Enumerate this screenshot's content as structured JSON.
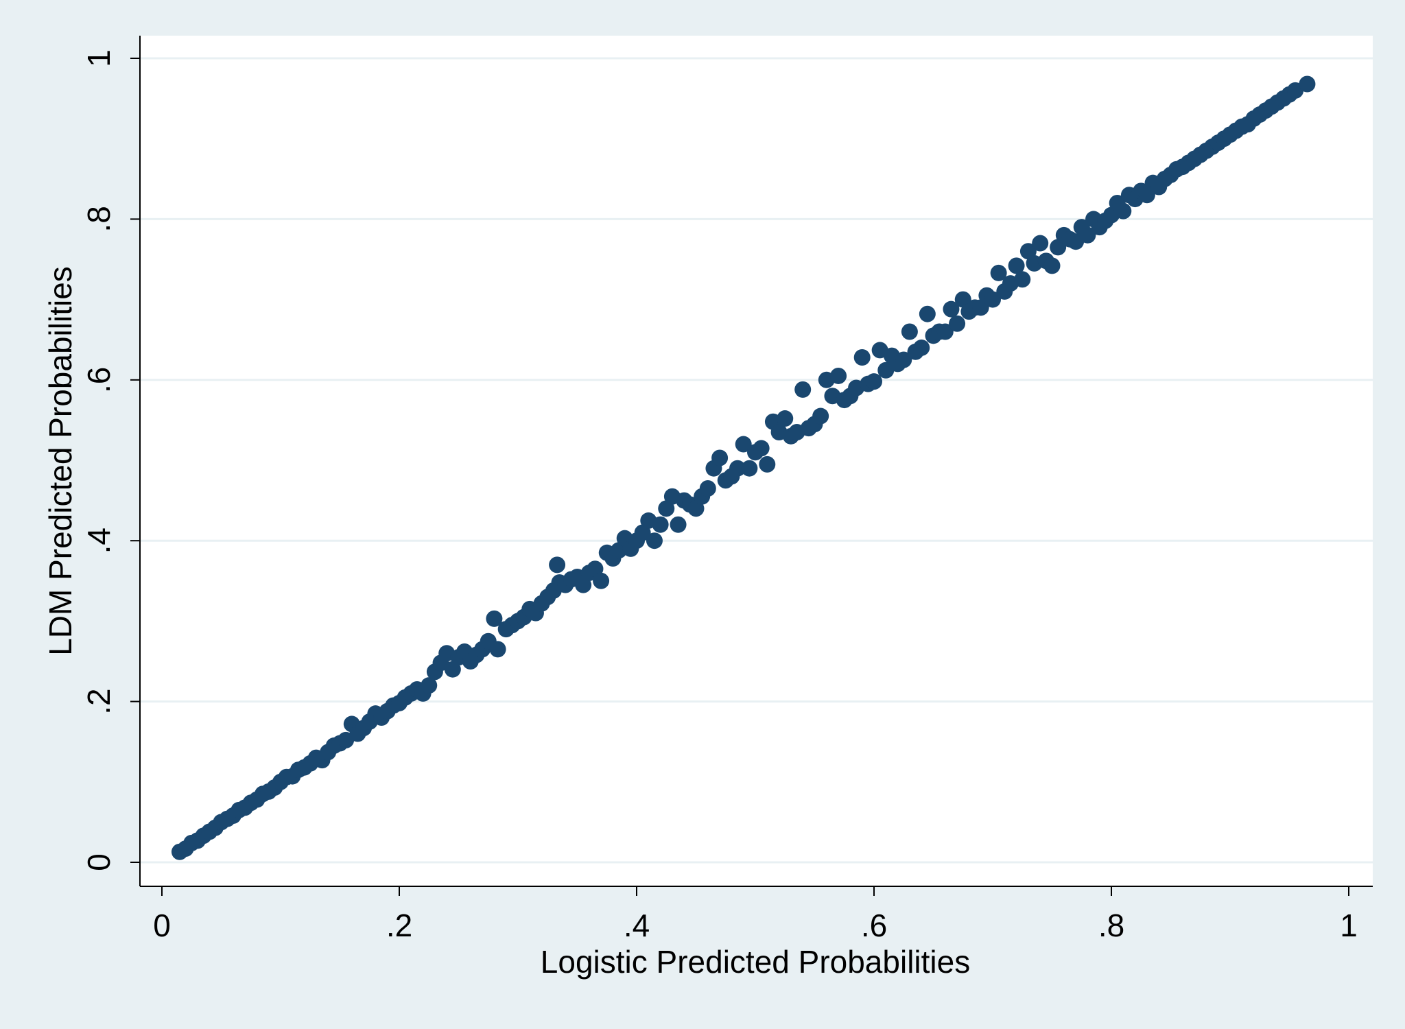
{
  "chart_data": {
    "type": "scatter",
    "title": "",
    "xlabel": "Logistic Predicted Probabilities",
    "ylabel": "LDM Predicted Probabilities",
    "xlim": [
      0,
      1
    ],
    "ylim": [
      0,
      1
    ],
    "x_ticks": [
      {
        "value": 0,
        "label": "0"
      },
      {
        "value": 0.2,
        "label": ".2"
      },
      {
        "value": 0.4,
        "label": ".4"
      },
      {
        "value": 0.6,
        "label": ".6"
      },
      {
        "value": 0.8,
        "label": ".8"
      },
      {
        "value": 1,
        "label": "1"
      }
    ],
    "y_ticks": [
      {
        "value": 0,
        "label": "0"
      },
      {
        "value": 0.2,
        "label": ".2"
      },
      {
        "value": 0.4,
        "label": ".4"
      },
      {
        "value": 0.6,
        "label": ".6"
      },
      {
        "value": 0.8,
        "label": ".8"
      },
      {
        "value": 1,
        "label": "1"
      }
    ],
    "grid": "horizontal",
    "legend": "none",
    "colors": {
      "marker": "#1a476f",
      "background": "#e8f0f3",
      "plot_area": "#ffffff",
      "grid": "#e8f0f3",
      "axis": "#000000"
    },
    "points": [
      [
        0.015,
        0.013
      ],
      [
        0.02,
        0.017
      ],
      [
        0.025,
        0.024
      ],
      [
        0.03,
        0.027
      ],
      [
        0.035,
        0.033
      ],
      [
        0.04,
        0.038
      ],
      [
        0.045,
        0.043
      ],
      [
        0.05,
        0.05
      ],
      [
        0.055,
        0.054
      ],
      [
        0.06,
        0.058
      ],
      [
        0.065,
        0.065
      ],
      [
        0.07,
        0.068
      ],
      [
        0.075,
        0.074
      ],
      [
        0.08,
        0.078
      ],
      [
        0.085,
        0.085
      ],
      [
        0.09,
        0.088
      ],
      [
        0.095,
        0.093
      ],
      [
        0.1,
        0.1
      ],
      [
        0.105,
        0.106
      ],
      [
        0.11,
        0.107
      ],
      [
        0.115,
        0.115
      ],
      [
        0.12,
        0.118
      ],
      [
        0.125,
        0.123
      ],
      [
        0.13,
        0.13
      ],
      [
        0.135,
        0.127
      ],
      [
        0.14,
        0.137
      ],
      [
        0.145,
        0.145
      ],
      [
        0.15,
        0.148
      ],
      [
        0.155,
        0.152
      ],
      [
        0.16,
        0.172
      ],
      [
        0.165,
        0.16
      ],
      [
        0.17,
        0.167
      ],
      [
        0.175,
        0.175
      ],
      [
        0.18,
        0.185
      ],
      [
        0.185,
        0.18
      ],
      [
        0.19,
        0.188
      ],
      [
        0.195,
        0.195
      ],
      [
        0.2,
        0.198
      ],
      [
        0.205,
        0.205
      ],
      [
        0.21,
        0.21
      ],
      [
        0.215,
        0.215
      ],
      [
        0.22,
        0.21
      ],
      [
        0.225,
        0.22
      ],
      [
        0.23,
        0.237
      ],
      [
        0.235,
        0.248
      ],
      [
        0.24,
        0.26
      ],
      [
        0.245,
        0.24
      ],
      [
        0.25,
        0.255
      ],
      [
        0.255,
        0.262
      ],
      [
        0.26,
        0.25
      ],
      [
        0.265,
        0.258
      ],
      [
        0.27,
        0.265
      ],
      [
        0.275,
        0.275
      ],
      [
        0.28,
        0.303
      ],
      [
        0.283,
        0.265
      ],
      [
        0.29,
        0.29
      ],
      [
        0.295,
        0.295
      ],
      [
        0.3,
        0.3
      ],
      [
        0.305,
        0.305
      ],
      [
        0.31,
        0.315
      ],
      [
        0.315,
        0.31
      ],
      [
        0.32,
        0.322
      ],
      [
        0.325,
        0.33
      ],
      [
        0.33,
        0.338
      ],
      [
        0.333,
        0.37
      ],
      [
        0.335,
        0.348
      ],
      [
        0.34,
        0.345
      ],
      [
        0.345,
        0.352
      ],
      [
        0.35,
        0.355
      ],
      [
        0.355,
        0.345
      ],
      [
        0.36,
        0.36
      ],
      [
        0.365,
        0.365
      ],
      [
        0.37,
        0.35
      ],
      [
        0.375,
        0.385
      ],
      [
        0.38,
        0.378
      ],
      [
        0.385,
        0.388
      ],
      [
        0.39,
        0.403
      ],
      [
        0.395,
        0.39
      ],
      [
        0.4,
        0.4
      ],
      [
        0.405,
        0.41
      ],
      [
        0.41,
        0.425
      ],
      [
        0.415,
        0.4
      ],
      [
        0.42,
        0.42
      ],
      [
        0.425,
        0.44
      ],
      [
        0.43,
        0.455
      ],
      [
        0.435,
        0.42
      ],
      [
        0.44,
        0.45
      ],
      [
        0.445,
        0.445
      ],
      [
        0.45,
        0.44
      ],
      [
        0.455,
        0.455
      ],
      [
        0.46,
        0.465
      ],
      [
        0.465,
        0.49
      ],
      [
        0.47,
        0.503
      ],
      [
        0.475,
        0.475
      ],
      [
        0.48,
        0.48
      ],
      [
        0.485,
        0.49
      ],
      [
        0.49,
        0.52
      ],
      [
        0.495,
        0.49
      ],
      [
        0.5,
        0.51
      ],
      [
        0.505,
        0.515
      ],
      [
        0.51,
        0.495
      ],
      [
        0.515,
        0.548
      ],
      [
        0.52,
        0.535
      ],
      [
        0.525,
        0.552
      ],
      [
        0.53,
        0.53
      ],
      [
        0.535,
        0.535
      ],
      [
        0.54,
        0.588
      ],
      [
        0.545,
        0.54
      ],
      [
        0.55,
        0.545
      ],
      [
        0.555,
        0.555
      ],
      [
        0.56,
        0.6
      ],
      [
        0.565,
        0.58
      ],
      [
        0.57,
        0.605
      ],
      [
        0.575,
        0.575
      ],
      [
        0.58,
        0.58
      ],
      [
        0.585,
        0.59
      ],
      [
        0.59,
        0.628
      ],
      [
        0.595,
        0.595
      ],
      [
        0.6,
        0.598
      ],
      [
        0.605,
        0.637
      ],
      [
        0.61,
        0.612
      ],
      [
        0.615,
        0.63
      ],
      [
        0.62,
        0.62
      ],
      [
        0.625,
        0.625
      ],
      [
        0.63,
        0.66
      ],
      [
        0.635,
        0.635
      ],
      [
        0.64,
        0.64
      ],
      [
        0.645,
        0.682
      ],
      [
        0.65,
        0.655
      ],
      [
        0.655,
        0.66
      ],
      [
        0.66,
        0.66
      ],
      [
        0.665,
        0.688
      ],
      [
        0.67,
        0.67
      ],
      [
        0.675,
        0.7
      ],
      [
        0.68,
        0.685
      ],
      [
        0.685,
        0.69
      ],
      [
        0.69,
        0.69
      ],
      [
        0.695,
        0.705
      ],
      [
        0.7,
        0.7
      ],
      [
        0.705,
        0.733
      ],
      [
        0.71,
        0.71
      ],
      [
        0.715,
        0.72
      ],
      [
        0.72,
        0.742
      ],
      [
        0.725,
        0.725
      ],
      [
        0.73,
        0.76
      ],
      [
        0.735,
        0.745
      ],
      [
        0.74,
        0.77
      ],
      [
        0.745,
        0.748
      ],
      [
        0.75,
        0.742
      ],
      [
        0.755,
        0.765
      ],
      [
        0.76,
        0.78
      ],
      [
        0.765,
        0.775
      ],
      [
        0.77,
        0.772
      ],
      [
        0.775,
        0.79
      ],
      [
        0.78,
        0.78
      ],
      [
        0.785,
        0.8
      ],
      [
        0.79,
        0.79
      ],
      [
        0.795,
        0.798
      ],
      [
        0.8,
        0.805
      ],
      [
        0.805,
        0.82
      ],
      [
        0.81,
        0.81
      ],
      [
        0.815,
        0.83
      ],
      [
        0.82,
        0.825
      ],
      [
        0.825,
        0.835
      ],
      [
        0.83,
        0.83
      ],
      [
        0.835,
        0.845
      ],
      [
        0.84,
        0.84
      ],
      [
        0.845,
        0.85
      ],
      [
        0.85,
        0.855
      ],
      [
        0.855,
        0.862
      ],
      [
        0.86,
        0.865
      ],
      [
        0.865,
        0.87
      ],
      [
        0.87,
        0.875
      ],
      [
        0.875,
        0.88
      ],
      [
        0.88,
        0.885
      ],
      [
        0.885,
        0.89
      ],
      [
        0.89,
        0.895
      ],
      [
        0.895,
        0.9
      ],
      [
        0.9,
        0.905
      ],
      [
        0.905,
        0.91
      ],
      [
        0.91,
        0.915
      ],
      [
        0.915,
        0.918
      ],
      [
        0.92,
        0.925
      ],
      [
        0.925,
        0.93
      ],
      [
        0.93,
        0.935
      ],
      [
        0.935,
        0.94
      ],
      [
        0.94,
        0.945
      ],
      [
        0.945,
        0.95
      ],
      [
        0.95,
        0.955
      ],
      [
        0.955,
        0.96
      ],
      [
        0.965,
        0.968
      ]
    ]
  }
}
